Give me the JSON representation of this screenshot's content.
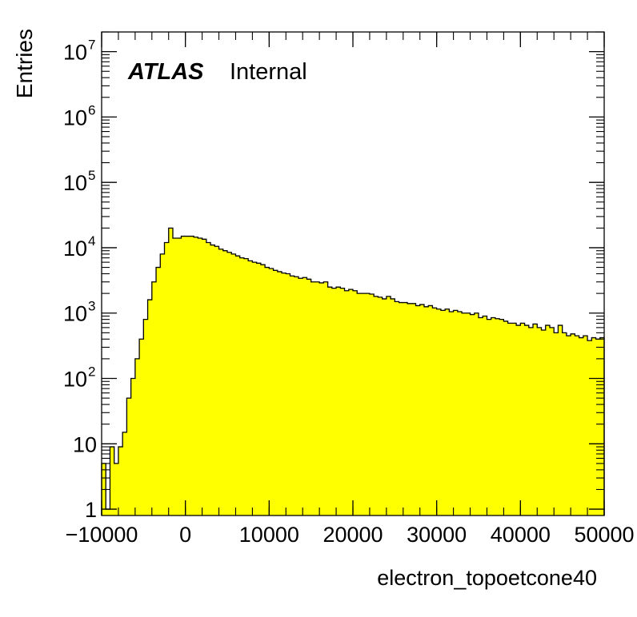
{
  "chart_data": {
    "type": "histogram",
    "xlabel": "electron_topoetcone40",
    "ylabel": "Entries",
    "xlim": [
      -10000,
      50000
    ],
    "ylim": [
      0.8,
      20000000
    ],
    "yscale": "log",
    "fill_color": "#ffff00",
    "line_color": "#000000",
    "annotation": {
      "bold": "ATLAS",
      "normal": "Internal"
    },
    "x_ticks": [
      {
        "value": -10000,
        "label": "−10000"
      },
      {
        "value": 0,
        "label": "0"
      },
      {
        "value": 10000,
        "label": "10000"
      },
      {
        "value": 20000,
        "label": "20000"
      },
      {
        "value": 30000,
        "label": "30000"
      },
      {
        "value": 40000,
        "label": "40000"
      },
      {
        "value": 50000,
        "label": "50000"
      }
    ],
    "y_ticks": [
      {
        "value": 1,
        "base": "1",
        "exp": ""
      },
      {
        "value": 10,
        "base": "10",
        "exp": ""
      },
      {
        "value": 100,
        "base": "10",
        "exp": "2"
      },
      {
        "value": 1000,
        "base": "10",
        "exp": "3"
      },
      {
        "value": 10000,
        "base": "10",
        "exp": "4"
      },
      {
        "value": 100000,
        "base": "10",
        "exp": "5"
      },
      {
        "value": 1000000,
        "base": "10",
        "exp": "6"
      },
      {
        "value": 10000000,
        "base": "10",
        "exp": "7"
      }
    ],
    "bin_low": -10000,
    "bin_width": 500,
    "values": [
      5,
      1,
      9,
      5,
      9,
      15,
      50,
      100,
      200,
      400,
      800,
      1600,
      3000,
      5000,
      8000,
      12000,
      20000,
      14000,
      14000,
      15000,
      15000,
      15000,
      14500,
      14000,
      13500,
      12000,
      11000,
      10500,
      9500,
      9000,
      8500,
      8000,
      7500,
      7000,
      6800,
      6300,
      6000,
      5800,
      5500,
      5000,
      4800,
      4500,
      4300,
      4100,
      4000,
      3700,
      3600,
      3400,
      3500,
      3300,
      3000,
      3000,
      2900,
      3000,
      2500,
      2400,
      2500,
      2400,
      2200,
      2300,
      2200,
      2000,
      2000,
      2000,
      1950,
      1800,
      1750,
      1650,
      1800,
      1650,
      1500,
      1450,
      1450,
      1400,
      1400,
      1300,
      1350,
      1250,
      1300,
      1200,
      1150,
      1100,
      1150,
      1050,
      1100,
      1050,
      1000,
      1000,
      950,
      1000,
      850,
      900,
      800,
      850,
      820,
      800,
      750,
      700,
      700,
      650,
      700,
      650,
      600,
      680,
      600,
      550,
      650,
      600,
      500,
      650,
      500,
      450,
      480,
      450,
      420,
      450,
      380,
      420,
      400,
      420
    ]
  }
}
